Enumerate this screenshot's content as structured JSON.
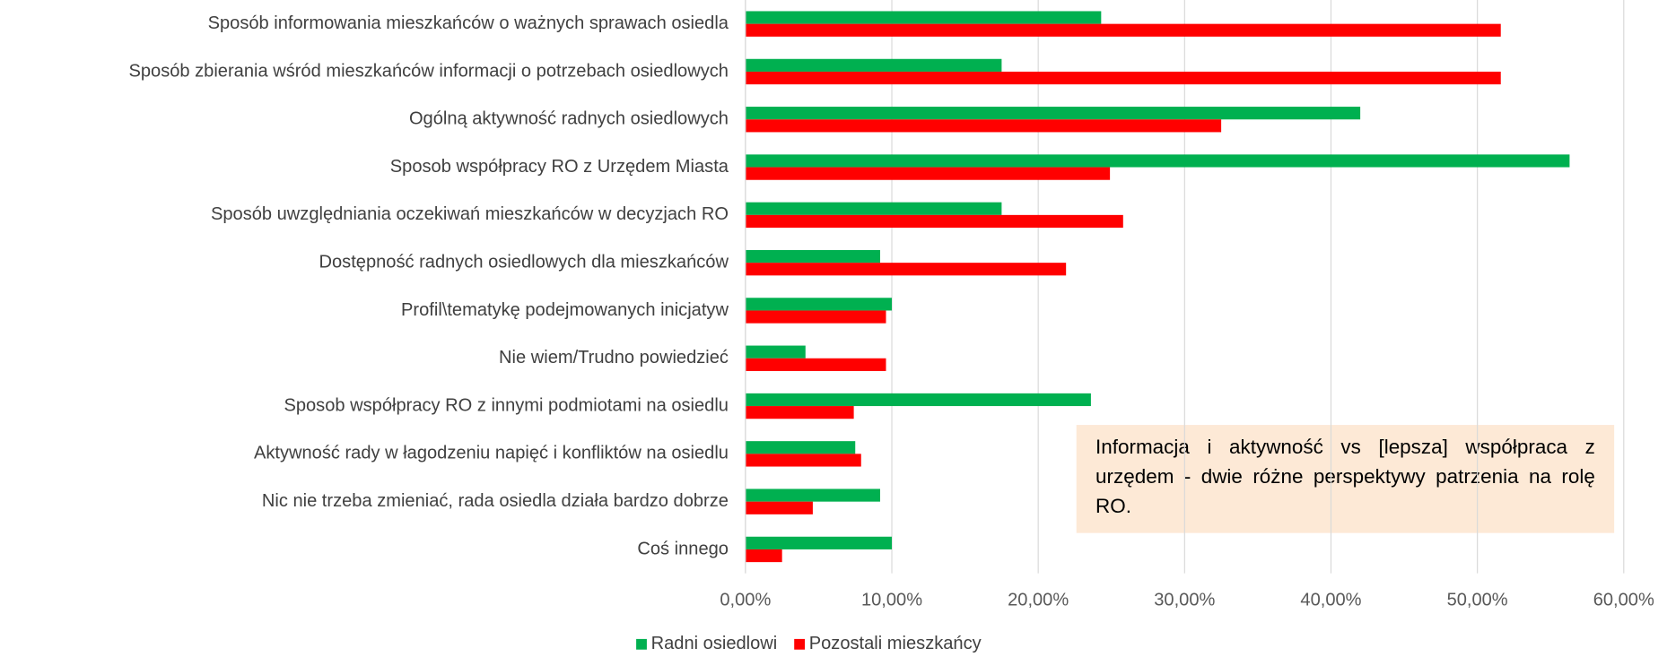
{
  "chart_data": {
    "type": "barh",
    "categories": [
      "Sposób informowania mieszkańców o ważnych sprawach osiedla",
      "Sposób zbierania wśród mieszkańców informacji o potrzebach osiedlowych",
      "Ogólną aktywność radnych osiedlowych",
      "Sposob współpracy RO z Urzędem Miasta",
      "Sposób uwzględniania oczekiwań mieszkańców w decyzjach RO",
      "Dostępność radnych osiedlowych dla mieszkańców",
      "Profil\\tematykę podejmowanych inicjatyw",
      "Nie wiem/Trudno powiedzieć",
      "Sposob współpracy RO z innymi podmiotami na osiedlu",
      "Aktywność rady w łagodzeniu napięć i konfliktów na osiedlu",
      "Nic nie trzeba zmieniać, rada osiedla działa bardzo dobrze",
      "Coś innego"
    ],
    "series": [
      {
        "name": "Radni osiedlowi",
        "color": "#00b050",
        "values": [
          24.3,
          17.5,
          42.0,
          56.3,
          17.5,
          9.2,
          10.0,
          4.1,
          23.6,
          7.5,
          9.2,
          10.0
        ]
      },
      {
        "name": "Pozostali mieszkańcy",
        "color": "#ff0000",
        "values": [
          51.6,
          51.6,
          32.5,
          24.9,
          25.8,
          21.9,
          9.6,
          9.6,
          7.4,
          7.9,
          4.6,
          2.5
        ]
      }
    ],
    "xlim": [
      0,
      60
    ],
    "xticks": [
      {
        "value": 0,
        "label": "0,00%"
      },
      {
        "value": 10,
        "label": "10,00%"
      },
      {
        "value": 20,
        "label": "20,00%"
      },
      {
        "value": 30,
        "label": "30,00%"
      },
      {
        "value": 40,
        "label": "40,00%"
      },
      {
        "value": 50,
        "label": "50,00%"
      },
      {
        "value": 60,
        "label": "60,00%"
      }
    ],
    "grid": true,
    "legend": "bottom",
    "annotation": "Informacja i aktywność vs [lepsza] współpraca z urzędem - dwie różne perspektywy patrzenia na rolę RO."
  }
}
